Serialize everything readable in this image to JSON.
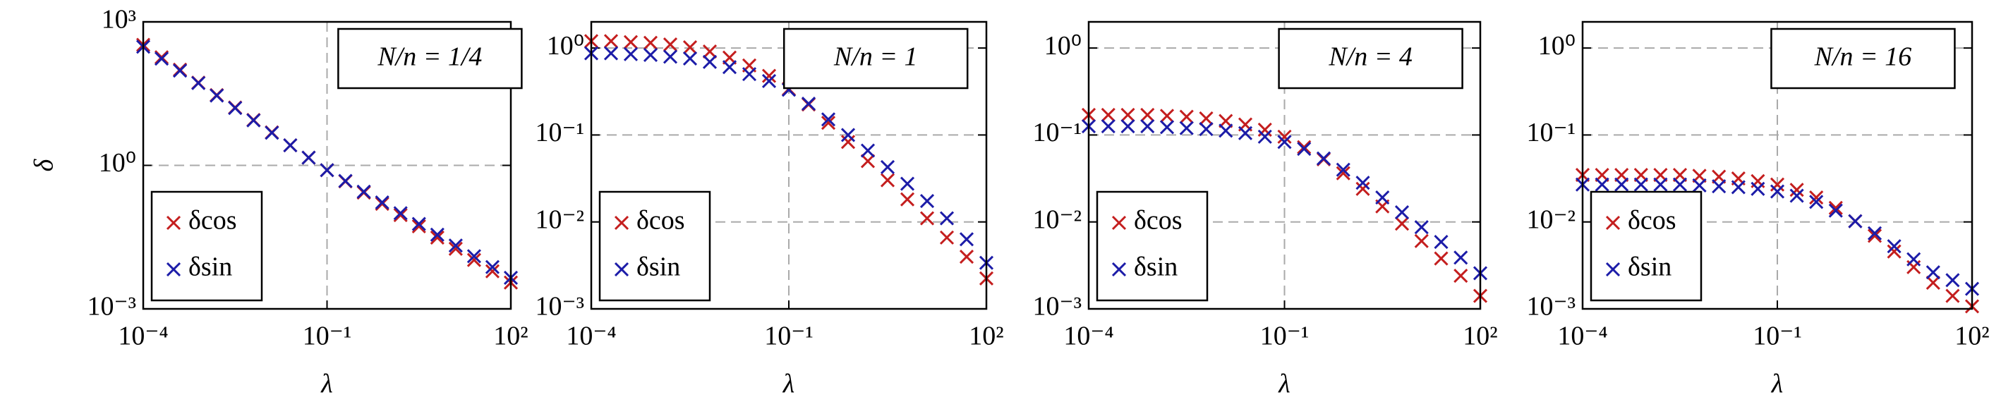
{
  "chart_data": [
    {
      "type": "scatter",
      "annotation": "N/n = 1/4",
      "xlabel": "λ",
      "ylabel": "δ",
      "log_x": true,
      "log_y": true,
      "grid": true,
      "legend": "lower left",
      "xlim": [
        0.0001,
        100
      ],
      "ylim": [
        0.001,
        1000
      ],
      "xticks": [
        {
          "value": 0.0001,
          "label": "10⁻⁴"
        },
        {
          "value": 0.1,
          "label": "10⁻¹"
        },
        {
          "value": 100,
          "label": "10²"
        }
      ],
      "yticks": [
        {
          "value": 0.001,
          "label": "10⁻³"
        },
        {
          "value": 1,
          "label": "10⁰"
        },
        {
          "value": 1000,
          "label": "10³"
        }
      ],
      "x": [
        0.0001,
        0.0001995,
        0.0003981,
        0.0007943,
        0.001585,
        0.003162,
        0.00631,
        0.01259,
        0.02512,
        0.05012,
        0.1,
        0.1995,
        0.3981,
        0.7943,
        1.585,
        3.162,
        6.31,
        12.59,
        25.12,
        50.12,
        100
      ],
      "series": [
        {
          "name": "δcos",
          "color": "#c41e1e",
          "values": [
            331,
            182,
            100,
            53.7,
            29.5,
            16.2,
            8.91,
            4.9,
            2.63,
            1.45,
            0.794,
            0.462,
            0.269,
            0.157,
            0.0912,
            0.0531,
            0.0309,
            0.018,
            0.0105,
            0.0061,
            0.00355
          ]
        },
        {
          "name": "δsin",
          "color": "#1c1ca8",
          "values": [
            302,
            170,
            95.5,
            52.5,
            28.8,
            15.8,
            8.71,
            4.79,
            2.63,
            1.45,
            0.794,
            0.473,
            0.282,
            0.168,
            0.1,
            0.0596,
            0.0355,
            0.0211,
            0.0126,
            0.0075,
            0.00447
          ]
        }
      ]
    },
    {
      "type": "scatter",
      "annotation": "N/n = 1",
      "xlabel": "λ",
      "log_x": true,
      "log_y": true,
      "grid": true,
      "legend": "lower left",
      "xlim": [
        0.0001,
        100
      ],
      "ylim": [
        0.001,
        2
      ],
      "xticks": [
        {
          "value": 0.0001,
          "label": "10⁻⁴"
        },
        {
          "value": 0.1,
          "label": "10⁻¹"
        },
        {
          "value": 100,
          "label": "10²"
        }
      ],
      "yticks": [
        {
          "value": 0.001,
          "label": "10⁻³"
        },
        {
          "value": 0.01,
          "label": "10⁻²"
        },
        {
          "value": 0.1,
          "label": "10⁻¹"
        },
        {
          "value": 1,
          "label": "10⁰"
        }
      ],
      "x": [
        0.0001,
        0.0001995,
        0.0003981,
        0.0007943,
        0.001585,
        0.003162,
        0.00631,
        0.01259,
        0.02512,
        0.05012,
        0.1,
        0.1995,
        0.3981,
        0.7943,
        1.585,
        3.162,
        6.31,
        12.59,
        25.12,
        50.12,
        100
      ],
      "series": [
        {
          "name": "δcos",
          "color": "#c41e1e",
          "values": [
            1.2,
            1.2,
            1.17,
            1.15,
            1.1,
            1.02,
            0.912,
            0.776,
            0.631,
            0.479,
            0.339,
            0.224,
            0.138,
            0.0832,
            0.0501,
            0.0302,
            0.0182,
            0.011,
            0.00661,
            0.00398,
            0.00224
          ]
        },
        {
          "name": "δsin",
          "color": "#1c1ca8",
          "values": [
            0.871,
            0.871,
            0.851,
            0.832,
            0.794,
            0.759,
            0.692,
            0.603,
            0.501,
            0.417,
            0.331,
            0.229,
            0.151,
            0.1,
            0.0661,
            0.0427,
            0.0275,
            0.0174,
            0.011,
            0.00631,
            0.00339
          ]
        }
      ]
    },
    {
      "type": "scatter",
      "annotation": "N/n = 4",
      "xlabel": "λ",
      "log_x": true,
      "log_y": true,
      "grid": true,
      "legend": "lower left",
      "xlim": [
        0.0001,
        100
      ],
      "ylim": [
        0.001,
        2
      ],
      "xticks": [
        {
          "value": 0.0001,
          "label": "10⁻⁴"
        },
        {
          "value": 0.1,
          "label": "10⁻¹"
        },
        {
          "value": 100,
          "label": "10²"
        }
      ],
      "yticks": [
        {
          "value": 0.001,
          "label": "10⁻³"
        },
        {
          "value": 0.01,
          "label": "10⁻²"
        },
        {
          "value": 0.1,
          "label": "10⁻¹"
        },
        {
          "value": 1,
          "label": "10⁰"
        }
      ],
      "x": [
        0.0001,
        0.0001995,
        0.0003981,
        0.0007943,
        0.001585,
        0.003162,
        0.00631,
        0.01259,
        0.02512,
        0.05012,
        0.1,
        0.1995,
        0.3981,
        0.7943,
        1.585,
        3.162,
        6.31,
        12.59,
        25.12,
        50.12,
        100
      ],
      "series": [
        {
          "name": "δcos",
          "color": "#c41e1e",
          "values": [
            0.17,
            0.17,
            0.17,
            0.17,
            0.166,
            0.162,
            0.155,
            0.145,
            0.132,
            0.115,
            0.0955,
            0.0724,
            0.0525,
            0.0363,
            0.024,
            0.0151,
            0.00955,
            0.00603,
            0.0038,
            0.0024,
            0.00141
          ]
        },
        {
          "name": "δsin",
          "color": "#1c1ca8",
          "values": [
            0.126,
            0.126,
            0.126,
            0.126,
            0.123,
            0.12,
            0.117,
            0.112,
            0.105,
            0.0955,
            0.0832,
            0.0692,
            0.0537,
            0.0398,
            0.0282,
            0.0191,
            0.0129,
            0.0087,
            0.00589,
            0.00389,
            0.00257
          ]
        }
      ]
    },
    {
      "type": "scatter",
      "annotation": "N/n = 16",
      "xlabel": "λ",
      "log_x": true,
      "log_y": true,
      "grid": true,
      "legend": "lower left",
      "xlim": [
        0.0001,
        100
      ],
      "ylim": [
        0.001,
        2
      ],
      "xticks": [
        {
          "value": 0.0001,
          "label": "10⁻⁴"
        },
        {
          "value": 0.1,
          "label": "10⁻¹"
        },
        {
          "value": 100,
          "label": "10²"
        }
      ],
      "yticks": [
        {
          "value": 0.001,
          "label": "10⁻³"
        },
        {
          "value": 0.01,
          "label": "10⁻²"
        },
        {
          "value": 0.1,
          "label": "10⁻¹"
        },
        {
          "value": 1,
          "label": "10⁰"
        }
      ],
      "x": [
        0.0001,
        0.0001995,
        0.0003981,
        0.0007943,
        0.001585,
        0.003162,
        0.00631,
        0.01259,
        0.02512,
        0.05012,
        0.1,
        0.1995,
        0.3981,
        0.7943,
        1.585,
        3.162,
        6.31,
        12.59,
        25.12,
        50.12,
        100
      ],
      "series": [
        {
          "name": "δcos",
          "color": "#c41e1e",
          "values": [
            0.0347,
            0.0347,
            0.0347,
            0.0347,
            0.0347,
            0.0347,
            0.0339,
            0.0331,
            0.0316,
            0.0295,
            0.0269,
            0.0234,
            0.0191,
            0.0145,
            0.0102,
            0.00692,
            0.00457,
            0.00302,
            0.002,
            0.00141,
            0.00107
          ]
        },
        {
          "name": "δsin",
          "color": "#1c1ca8",
          "values": [
            0.0269,
            0.0269,
            0.0269,
            0.0269,
            0.0269,
            0.0269,
            0.0263,
            0.0257,
            0.0251,
            0.024,
            0.0224,
            0.02,
            0.017,
            0.0135,
            0.0102,
            0.00741,
            0.00525,
            0.00372,
            0.00263,
            0.00214,
            0.0017
          ]
        }
      ]
    }
  ]
}
